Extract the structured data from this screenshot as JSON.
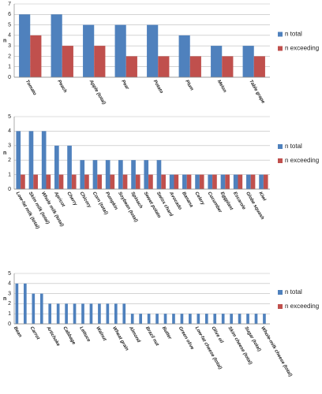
{
  "chart_data": [
    {
      "type": "bar",
      "ylabel": "n",
      "ylim": [
        0,
        7
      ],
      "yticks": [
        0,
        1,
        2,
        3,
        4,
        5,
        6,
        7
      ],
      "grid": true,
      "legend": "right",
      "categories": [
        "Tomato",
        "Peach",
        "Apple (total)",
        "Pear",
        "Potato",
        "Plum",
        "Melon",
        "Table grape"
      ],
      "series": [
        {
          "name": "n total",
          "color": "#4f81bd",
          "values": [
            6,
            6,
            5,
            5,
            5,
            4,
            3,
            3
          ]
        },
        {
          "name": "n exceeding",
          "color": "#c0504d",
          "values": [
            4,
            3,
            3,
            2,
            2,
            2,
            2,
            2
          ]
        }
      ]
    },
    {
      "type": "bar",
      "ylabel": "n",
      "ylim": [
        0,
        5
      ],
      "yticks": [
        0,
        1,
        2,
        3,
        4,
        5
      ],
      "grid": true,
      "legend": "right",
      "categories": [
        "Low-fat milk (total)",
        "Skim milk (total)",
        "Whole milk (total)",
        "Apricot",
        "Cherry",
        "Chicory",
        "Corn (total)",
        "Pumpkin",
        "Soybean (total)",
        "Spinach",
        "Sweet potato",
        "Swiss chard",
        "Avocado",
        "Banana",
        "Celery",
        "Cucumber",
        "Eggplant",
        "Escarole",
        "Globe squash",
        "Kiwi"
      ],
      "series": [
        {
          "name": "n total",
          "color": "#4f81bd",
          "values": [
            4,
            4,
            4,
            3,
            3,
            2,
            2,
            2,
            2,
            2,
            2,
            2,
            1,
            1,
            1,
            1,
            1,
            1,
            1,
            1
          ]
        },
        {
          "name": "n exceeding",
          "color": "#c0504d",
          "values": [
            1,
            1,
            1,
            1,
            1,
            1,
            1,
            1,
            1,
            1,
            1,
            1,
            1,
            1,
            1,
            1,
            1,
            1,
            1,
            1
          ]
        }
      ]
    },
    {
      "type": "bar",
      "ylabel": "n",
      "ylim": [
        0,
        5
      ],
      "yticks": [
        0,
        1,
        2,
        3,
        4,
        5
      ],
      "grid": true,
      "legend": "right",
      "categories": [
        "Bean",
        null,
        "Carrot",
        null,
        "Artichoke",
        null,
        "Cabbage",
        null,
        "Lettuce",
        null,
        "Walnut",
        null,
        "Wheat grain",
        null,
        "Almond",
        null,
        "Brazil nut",
        null,
        "Butter",
        null,
        "Green olive",
        null,
        "Low-fat cheese (total)",
        null,
        "Olive oil",
        null,
        "Skim cheese (total)",
        null,
        "Sugar (total)",
        null,
        "Whole-milk cheese (total)"
      ],
      "series": [
        {
          "name": "n total",
          "color": "#4f81bd",
          "values": [
            4,
            4,
            3,
            3,
            2,
            2,
            2,
            2,
            2,
            2,
            2,
            2,
            2,
            2,
            1,
            1,
            1,
            1,
            1,
            1,
            1,
            1,
            1,
            1,
            1,
            1,
            1,
            1,
            1,
            1,
            1
          ]
        },
        {
          "name": "n exceeding",
          "color": "#c0504d",
          "values": [
            0,
            0,
            0,
            0,
            0,
            0,
            0,
            0,
            0,
            0,
            0,
            0,
            0,
            0,
            0,
            0,
            0,
            0,
            0,
            0,
            0,
            0,
            0,
            0,
            0,
            0,
            0,
            0,
            0,
            0,
            0
          ]
        }
      ]
    }
  ]
}
